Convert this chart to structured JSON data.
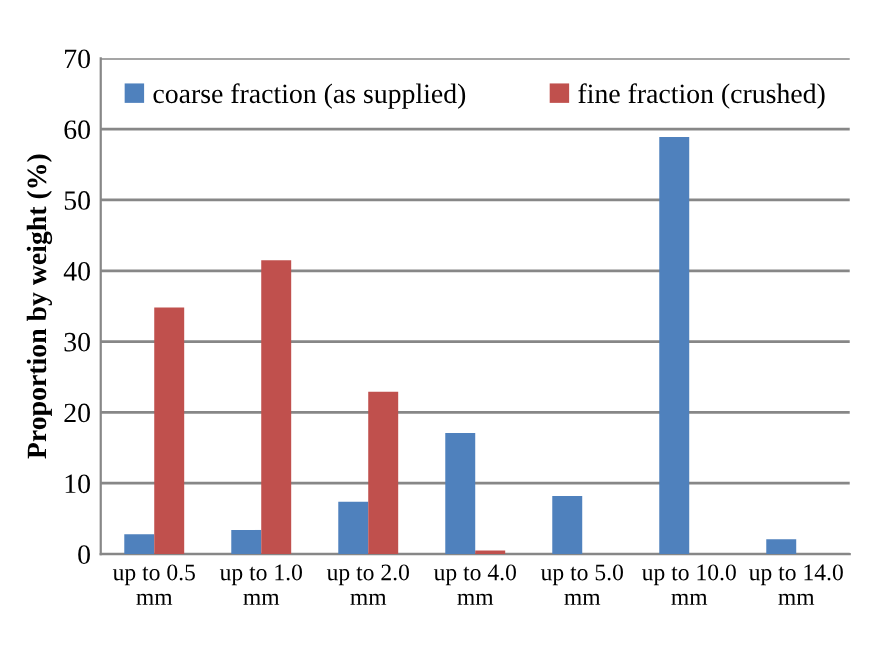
{
  "chart_data": {
    "type": "bar",
    "ylabel": "Proportion by weight (%)",
    "categories": [
      "up to 0.5\nmm",
      "up to 1.0\nmm",
      "up to 2.0\nmm",
      "up to 4.0\nmm",
      "up to 5.0\nmm",
      "up to 10.0\nmm",
      "up to 14.0\nmm"
    ],
    "series": [
      {
        "name": "coarse fraction (as supplied)",
        "color": "#4f81bd",
        "values": [
          2.8,
          3.4,
          7.4,
          17.1,
          8.2,
          58.9,
          2.1
        ]
      },
      {
        "name": "fine fraction (crushed)",
        "color": "#c0504d",
        "values": [
          34.8,
          41.5,
          22.9,
          0.5,
          0,
          0,
          0
        ]
      }
    ],
    "ylim": [
      0,
      70
    ],
    "yticks": [
      0,
      10,
      20,
      30,
      40,
      50,
      60,
      70
    ],
    "grid": "y",
    "legend": "top"
  }
}
